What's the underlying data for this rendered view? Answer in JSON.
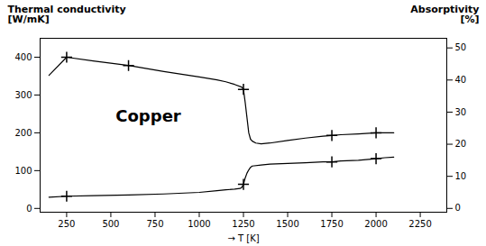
{
  "chart_data": {
    "type": "line",
    "ylabel": [
      "Thermal conductivity",
      "[W/mK]"
    ],
    "y2label": [
      "Absorptivity",
      "[%]"
    ],
    "xlabel": "→ T [K]",
    "annotations": [
      "Copper"
    ],
    "xlim": [
      100,
      2400
    ],
    "xticks": [
      250,
      500,
      750,
      1000,
      1250,
      1500,
      1750,
      2000,
      2250
    ],
    "ylim": [
      -10,
      450
    ],
    "yticks": [
      0,
      100,
      200,
      300,
      400
    ],
    "y2lim": [
      -1.18,
      53
    ],
    "y2ticks": [
      0,
      10,
      20,
      30,
      40,
      50
    ],
    "grid": false,
    "series": [
      {
        "color": "#000000",
        "marker": "plus",
        "x": [
          150,
          250,
          400,
          600,
          800,
          1000,
          1100,
          1150,
          1200,
          1240,
          1250,
          1260,
          1270,
          1280,
          1290,
          1300,
          1320,
          1350,
          1400,
          1500,
          1600,
          1700,
          1750,
          1800,
          1900,
          2000,
          2050,
          2100
        ],
        "values": [
          352,
          400,
          390,
          378,
          362,
          348,
          340,
          335,
          328,
          321,
          315,
          280,
          240,
          200,
          183,
          178,
          173,
          171,
          173,
          180,
          186,
          191,
          193,
          195,
          197,
          200,
          200,
          200
        ],
        "marker_x": [
          250,
          600,
          1250,
          1750,
          2000
        ],
        "marker_values": [
          400,
          378,
          315,
          193,
          200
        ]
      },
      {
        "color": "#000000",
        "marker": "plus",
        "axis": "y2",
        "x": [
          150,
          250,
          400,
          600,
          800,
          1000,
          1100,
          1150,
          1200,
          1230,
          1240,
          1250,
          1260,
          1270,
          1280,
          1290,
          1300,
          1350,
          1400,
          1500,
          1600,
          1700,
          1750,
          1800,
          1900,
          2000,
          2050,
          2100
        ],
        "values": [
          3.5,
          3.8,
          4.0,
          4.2,
          4.5,
          5.0,
          5.5,
          5.8,
          6.0,
          6.2,
          6.5,
          7.5,
          9.5,
          11.0,
          12.0,
          12.8,
          13.2,
          13.5,
          13.8,
          14.0,
          14.2,
          14.5,
          14.5,
          14.8,
          15.0,
          15.5,
          15.8,
          16.0
        ],
        "marker_x": [
          250,
          1250,
          1750,
          2000
        ],
        "marker_values": [
          3.8,
          7.5,
          14.5,
          15.5
        ]
      }
    ]
  }
}
